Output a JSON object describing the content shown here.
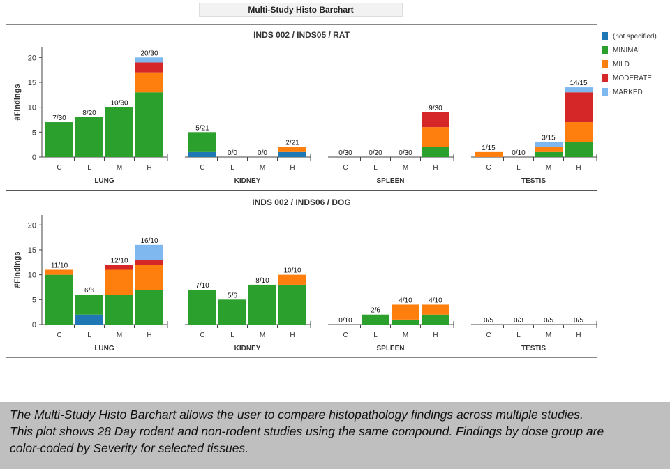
{
  "header": {
    "title": "Multi-Study Histo Barchart"
  },
  "legend": [
    {
      "label": "(not specified)",
      "color": "#1f77b4"
    },
    {
      "label": "MINIMAL",
      "color": "#2ca02c"
    },
    {
      "label": "MILD",
      "color": "#ff7f0e"
    },
    {
      "label": "MODERATE",
      "color": "#d62728"
    },
    {
      "label": "MARKED",
      "color": "#7fb8ef"
    }
  ],
  "chart_data": [
    {
      "type": "bar",
      "stacked": true,
      "title": "INDS 002 / INDS05 / RAT",
      "ylabel": "#Findings",
      "ylim": [
        0,
        22
      ],
      "yticks": [
        0,
        5,
        10,
        15,
        20
      ],
      "series_order": [
        "(not specified)",
        "MINIMAL",
        "MILD",
        "MODERATE",
        "MARKED"
      ],
      "groups": [
        {
          "name": "LUNG",
          "bars": [
            {
              "category": "C",
              "label": "7/30",
              "values": [
                0,
                7,
                0,
                0,
                0
              ]
            },
            {
              "category": "L",
              "label": "8/20",
              "values": [
                0,
                8,
                0,
                0,
                0
              ]
            },
            {
              "category": "M",
              "label": "10/30",
              "values": [
                0,
                10,
                0,
                0,
                0
              ]
            },
            {
              "category": "H",
              "label": "20/30",
              "values": [
                0,
                13,
                4,
                2,
                1
              ]
            }
          ]
        },
        {
          "name": "KIDNEY",
          "bars": [
            {
              "category": "C",
              "label": "5/21",
              "values": [
                1,
                4,
                0,
                0,
                0
              ]
            },
            {
              "category": "L",
              "label": "0/0",
              "values": [
                0,
                0,
                0,
                0,
                0
              ]
            },
            {
              "category": "M",
              "label": "0/0",
              "values": [
                0,
                0,
                0,
                0,
                0
              ]
            },
            {
              "category": "H",
              "label": "2/21",
              "values": [
                1,
                0,
                1,
                0,
                0
              ]
            }
          ]
        },
        {
          "name": "SPLEEN",
          "bars": [
            {
              "category": "C",
              "label": "0/30",
              "values": [
                0,
                0,
                0,
                0,
                0
              ]
            },
            {
              "category": "L",
              "label": "0/20",
              "values": [
                0,
                0,
                0,
                0,
                0
              ]
            },
            {
              "category": "M",
              "label": "0/30",
              "values": [
                0,
                0,
                0,
                0,
                0
              ]
            },
            {
              "category": "H",
              "label": "9/30",
              "values": [
                0,
                2,
                4,
                3,
                0
              ]
            }
          ]
        },
        {
          "name": "TESTIS",
          "bars": [
            {
              "category": "C",
              "label": "1/15",
              "values": [
                0,
                0,
                1,
                0,
                0
              ]
            },
            {
              "category": "L",
              "label": "0/10",
              "values": [
                0,
                0,
                0,
                0,
                0
              ]
            },
            {
              "category": "M",
              "label": "3/15",
              "values": [
                0,
                1,
                1,
                0,
                1
              ]
            },
            {
              "category": "H",
              "label": "14/15",
              "values": [
                0,
                3,
                4,
                6,
                1
              ]
            }
          ]
        }
      ]
    },
    {
      "type": "bar",
      "stacked": true,
      "title": "INDS 002 / INDS06 / DOG",
      "ylabel": "#Findings",
      "ylim": [
        0,
        22
      ],
      "yticks": [
        0,
        5,
        10,
        15,
        20
      ],
      "series_order": [
        "(not specified)",
        "MINIMAL",
        "MILD",
        "MODERATE",
        "MARKED"
      ],
      "groups": [
        {
          "name": "LUNG",
          "bars": [
            {
              "category": "C",
              "label": "11/10",
              "values": [
                0,
                10,
                1,
                0,
                0
              ]
            },
            {
              "category": "L",
              "label": "6/6",
              "values": [
                2,
                4,
                0,
                0,
                0
              ]
            },
            {
              "category": "M",
              "label": "12/10",
              "values": [
                0,
                6,
                5,
                1,
                0
              ]
            },
            {
              "category": "H",
              "label": "16/10",
              "values": [
                0,
                7,
                5,
                1,
                3
              ]
            }
          ]
        },
        {
          "name": "KIDNEY",
          "bars": [
            {
              "category": "C",
              "label": "7/10",
              "values": [
                0,
                7,
                0,
                0,
                0
              ]
            },
            {
              "category": "L",
              "label": "5/6",
              "values": [
                0,
                5,
                0,
                0,
                0
              ]
            },
            {
              "category": "M",
              "label": "8/10",
              "values": [
                0,
                8,
                0,
                0,
                0
              ]
            },
            {
              "category": "H",
              "label": "10/10",
              "values": [
                0,
                8,
                2,
                0,
                0
              ]
            }
          ]
        },
        {
          "name": "SPLEEN",
          "bars": [
            {
              "category": "C",
              "label": "0/10",
              "values": [
                0,
                0,
                0,
                0,
                0
              ]
            },
            {
              "category": "L",
              "label": "2/6",
              "values": [
                0,
                2,
                0,
                0,
                0
              ]
            },
            {
              "category": "M",
              "label": "4/10",
              "values": [
                0,
                1,
                3,
                0,
                0
              ]
            },
            {
              "category": "H",
              "label": "4/10",
              "values": [
                0,
                2,
                2,
                0,
                0
              ]
            }
          ]
        },
        {
          "name": "TESTIS",
          "bars": [
            {
              "category": "C",
              "label": "0/5",
              "values": [
                0,
                0,
                0,
                0,
                0
              ]
            },
            {
              "category": "L",
              "label": "0/3",
              "values": [
                0,
                0,
                0,
                0,
                0
              ]
            },
            {
              "category": "M",
              "label": "0/5",
              "values": [
                0,
                0,
                0,
                0,
                0
              ]
            },
            {
              "category": "H",
              "label": "0/5",
              "values": [
                0,
                0,
                0,
                0,
                0
              ]
            }
          ]
        }
      ]
    }
  ],
  "caption": {
    "lines": [
      "The Multi-Study Histo Barchart allows the user to compare histopathology findings across multiple studies.",
      "This plot shows 28 Day rodent and non-rodent studies using the same compound.  Findings by dose group are",
      "color-coded by Severity for selected tissues."
    ]
  }
}
